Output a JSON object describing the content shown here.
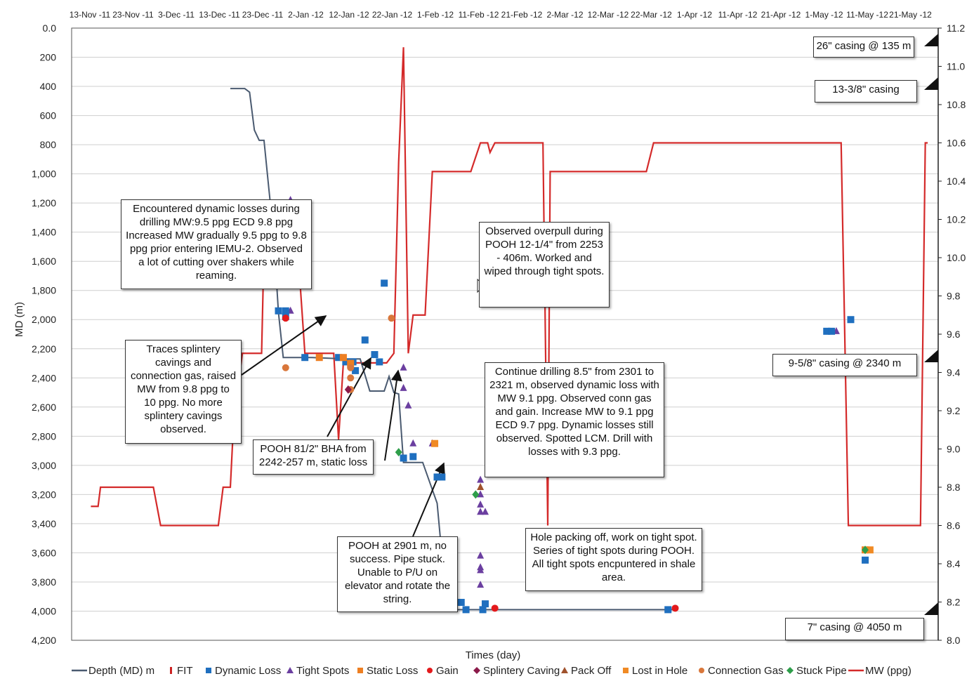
{
  "colors": {
    "depth": "#4a5a70",
    "fit": "#cc2222",
    "mw": "#d42a2a",
    "dynamic_loss": "#1f6fbf",
    "tight_spots": "#6b3fa0",
    "static_loss": "#ee7f22",
    "gain": "#e31a1c",
    "splintery_caving": "#8b1a4a",
    "pack_off": "#a0522d",
    "lost_in_hole": "#f08a24",
    "connection_gas": "#d9773b",
    "stuck_pipe": "#2e9e4a"
  },
  "chart_data": {
    "type": "line",
    "xlabel": "Times (day)",
    "ylabel": "MD (m)",
    "x_tick_labels": [
      "13-Nov -11",
      "23-Nov -11",
      "3-Dec -11",
      "13-Dec -11",
      "23-Dec -11",
      "2-Jan -12",
      "12-Jan -12",
      "22-Jan -12",
      "1-Feb -12",
      "11-Feb -12",
      "21-Feb -12",
      "2-Mar -12",
      "12-Mar -12",
      "22-Mar -12",
      "1-Apr -12",
      "11-Apr -12",
      "21-Apr -12",
      "1-May -12",
      "11-May -12",
      "21-May -12"
    ],
    "y_left_ticks": [
      "0.0",
      "200",
      "400",
      "600",
      "800",
      "1,000",
      "1,200",
      "1,400",
      "1,600",
      "1,800",
      "2,000",
      "2,200",
      "2,400",
      "2,600",
      "2,800",
      "3,000",
      "3,200",
      "3,400",
      "3,600",
      "3,800",
      "4,000",
      "4,200"
    ],
    "y_left_range": [
      0,
      4200
    ],
    "y_left_reversed": true,
    "y_right_ticks": [
      "11.2",
      "11.0",
      "10.8",
      "10.6",
      "10.4",
      "10.2",
      "10.0",
      "9.8",
      "9.6",
      "9.4",
      "9.2",
      "9.0",
      "8.8",
      "8.6",
      "8.4",
      "8.2",
      "8.0"
    ],
    "y_right_range": [
      8.0,
      11.2
    ],
    "x_range_days": [
      0,
      200
    ],
    "x_start_date": "2011-11-13",
    "grid": "horizontal",
    "legend_position": "bottom",
    "depth_series": {
      "name": "Depth (MD) m",
      "points": [
        [
          66,
          415
        ],
        [
          72,
          415
        ],
        [
          74,
          440
        ],
        [
          76,
          700
        ],
        [
          78,
          770
        ],
        [
          80,
          770
        ],
        [
          82,
          1100
        ],
        [
          84,
          1420
        ],
        [
          86,
          1950
        ],
        [
          88,
          2260
        ],
        [
          100,
          2260
        ],
        [
          114,
          2270
        ],
        [
          120,
          2270
        ],
        [
          124,
          2490
        ],
        [
          130,
          2490
        ],
        [
          132,
          2390
        ],
        [
          134,
          2500
        ],
        [
          136,
          2510
        ],
        [
          138,
          2980
        ],
        [
          146,
          2980
        ],
        [
          152,
          3260
        ],
        [
          156,
          3980
        ],
        [
          160,
          3990
        ],
        [
          250,
          3990
        ]
      ]
    },
    "mw_series": {
      "name": "MW (ppg)",
      "points": [
        [
          8,
          8.7
        ],
        [
          11,
          8.7
        ],
        [
          12,
          8.8
        ],
        [
          34,
          8.8
        ],
        [
          37,
          8.6
        ],
        [
          61,
          8.6
        ],
        [
          63,
          8.8
        ],
        [
          66,
          8.8
        ],
        [
          68,
          9.3
        ],
        [
          69,
          9.3
        ],
        [
          71,
          9.5
        ],
        [
          79,
          9.5
        ],
        [
          80,
          10.05
        ],
        [
          94,
          10.05
        ],
        [
          97,
          9.5
        ],
        [
          109,
          9.5
        ],
        [
          111,
          9.05
        ],
        [
          113,
          9.45
        ],
        [
          131,
          9.45
        ],
        [
          134,
          9.5
        ],
        [
          136,
          10.5
        ],
        [
          138,
          11.1
        ],
        [
          140,
          9.5
        ],
        [
          142,
          9.7
        ],
        [
          147,
          9.7
        ],
        [
          149,
          10.2
        ],
        [
          150,
          10.45
        ],
        [
          166,
          10.45
        ],
        [
          170,
          10.6
        ],
        [
          173,
          10.6
        ],
        [
          174,
          10.55
        ],
        [
          176,
          10.6
        ],
        [
          196,
          10.6
        ],
        [
          198,
          8.6
        ],
        [
          199,
          10.45
        ],
        [
          239,
          10.45
        ],
        [
          242,
          10.6
        ],
        [
          320,
          10.6
        ],
        [
          323,
          8.6
        ],
        [
          353,
          8.6
        ],
        [
          355,
          10.6
        ],
        [
          356,
          10.6
        ]
      ]
    },
    "dynamic_loss": [
      [
        84,
        1400
      ],
      [
        86,
        1490
      ],
      [
        86,
        1940
      ],
      [
        89,
        1940
      ],
      [
        89,
        1980
      ],
      [
        97,
        2260
      ],
      [
        111,
        2260
      ],
      [
        114,
        2290
      ],
      [
        117,
        2290
      ],
      [
        118,
        2350
      ],
      [
        122,
        2140
      ],
      [
        126,
        2240
      ],
      [
        128,
        2290
      ],
      [
        130,
        1750
      ],
      [
        138,
        2950
      ],
      [
        142,
        2940
      ],
      [
        152,
        3080
      ],
      [
        154,
        3080
      ],
      [
        162,
        3940
      ],
      [
        164,
        3990
      ],
      [
        171,
        3990
      ],
      [
        172,
        3950
      ],
      [
        248,
        3990
      ],
      [
        314,
        2080
      ],
      [
        316,
        2080
      ],
      [
        324,
        2000
      ],
      [
        330,
        3650
      ]
    ],
    "tight_spots": [
      [
        91,
        1180
      ],
      [
        91,
        1260
      ],
      [
        91,
        1290
      ],
      [
        91,
        1560
      ],
      [
        91,
        1610
      ],
      [
        91,
        1650
      ],
      [
        91,
        1690
      ],
      [
        91,
        1720
      ],
      [
        91,
        1940
      ],
      [
        138,
        2330
      ],
      [
        138,
        2470
      ],
      [
        140,
        2590
      ],
      [
        142,
        2850
      ],
      [
        150,
        2850
      ],
      [
        170,
        3100
      ],
      [
        170,
        3200
      ],
      [
        170,
        3270
      ],
      [
        170,
        3320
      ],
      [
        172,
        3320
      ],
      [
        170,
        3620
      ],
      [
        170,
        3700
      ],
      [
        170,
        3720
      ],
      [
        170,
        3820
      ],
      [
        318,
        2080
      ]
    ],
    "static_loss": [
      [
        103,
        2260
      ],
      [
        113,
        2260
      ],
      [
        116,
        2300
      ],
      [
        330,
        3580
      ]
    ],
    "gain": [
      [
        89,
        1990
      ],
      [
        176,
        3980
      ],
      [
        251,
        3980
      ]
    ],
    "splintery_caving": [
      [
        115,
        2480
      ]
    ],
    "pack_off": [
      [
        170,
        3150
      ]
    ],
    "lost_in_hole": [
      [
        151,
        2850
      ],
      [
        332,
        3580
      ]
    ],
    "connection_gas": [
      [
        89,
        2330
      ],
      [
        116,
        2330
      ],
      [
        116,
        2400
      ],
      [
        116,
        2480
      ],
      [
        133,
        1990
      ]
    ],
    "stuck_pipe": [
      [
        136,
        2910
      ],
      [
        168,
        3200
      ],
      [
        330,
        3580
      ]
    ],
    "fit": [
      [
        89,
        1990
      ]
    ]
  },
  "annotations": [
    "Encountered dynamic losses during drilling MW:9.5 ppg ECD 9.8 ppg Increased MW gradually 9.5 ppg to 9.8 ppg prior entering IEMU-2. Observed a lot of cutting over shakers while reaming.",
    "Traces splintery cavings and connection gas, raised MW from 9.8 ppg to 10 ppg. No more splintery cavings observed.",
    "POOH 81/2\" BHA from 2242-257 m, static loss",
    "Observed overpull during POOH 12-1/4\" from 2253 - 406m. Worked and wiped through tight spots.",
    "Continue drilling 8.5\" from 2301 to 2321 m, observed dynamic loss with MW 9.1 ppg. Observed conn gas and gain. Increase MW to 9.1 ppg ECD 9.7 ppg. Dynamic losses still observed. Spotted LCM. Drill with losses with 9.3 ppg.",
    "POOH at 2901 m, no success. Pipe stuck. Unable to P/U on elevator and rotate the string.",
    "Hole packing off, work on tight spot. Series of tight spots during POOH. All tight spots encpuntered in shale area."
  ],
  "casings": [
    "26\" casing @ 135 m",
    "13-3/8\" casing",
    "9-5/8\" casing @ 2340 m",
    "7\" casing @ 4050 m"
  ],
  "legend": [
    {
      "label": "Depth (MD) m",
      "symbol": "line",
      "color": "#4a5a70"
    },
    {
      "label": "FIT",
      "symbol": "bar",
      "color": "#cc2222"
    },
    {
      "label": "Dynamic Loss",
      "symbol": "square",
      "color": "#1f6fbf"
    },
    {
      "label": "Tight Spots",
      "symbol": "triangle",
      "color": "#6b3fa0"
    },
    {
      "label": "Static Loss",
      "symbol": "square",
      "color": "#ee7f22"
    },
    {
      "label": "Gain",
      "symbol": "circle",
      "color": "#e31a1c"
    },
    {
      "label": "Splintery Caving",
      "symbol": "diamond",
      "color": "#8b1a4a"
    },
    {
      "label": "Pack Off",
      "symbol": "triangle",
      "color": "#a0522d"
    },
    {
      "label": "Lost in Hole",
      "symbol": "square",
      "color": "#f08a24"
    },
    {
      "label": "Connection Gas",
      "symbol": "circle",
      "color": "#d9773b"
    },
    {
      "label": "Stuck Pipe",
      "symbol": "diamond",
      "color": "#2e9e4a"
    },
    {
      "label": "MW (ppg)",
      "symbol": "line",
      "color": "#d42a2a"
    }
  ]
}
